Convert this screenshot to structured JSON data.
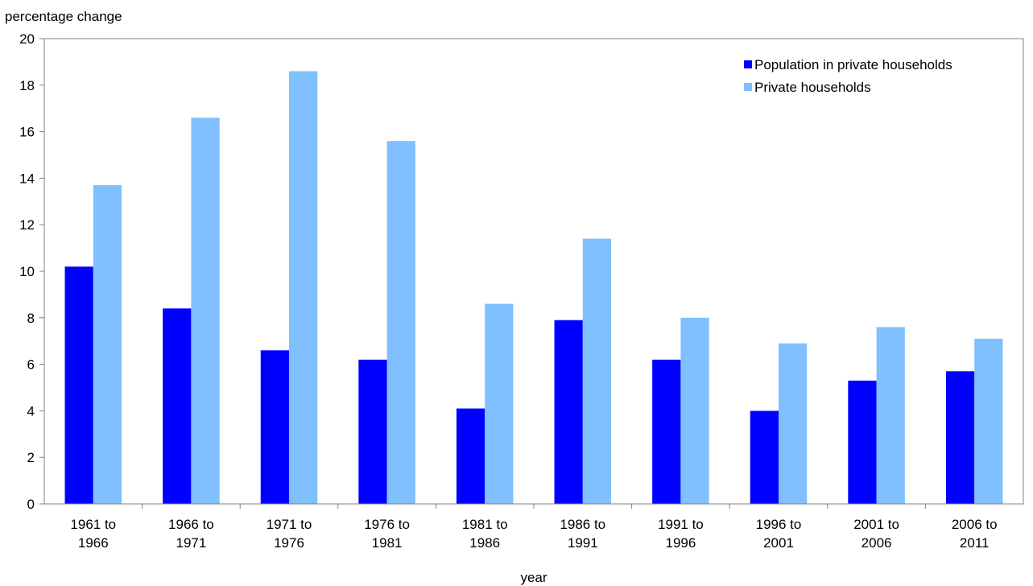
{
  "chart_data": {
    "type": "bar",
    "title": "",
    "ylabel": "percentage change",
    "xlabel": "year",
    "ylim": [
      0,
      20
    ],
    "yticks": [
      0,
      2,
      4,
      6,
      8,
      10,
      12,
      14,
      16,
      18,
      20
    ],
    "grid": false,
    "legend_position": "top-right",
    "categories": [
      [
        "1961 to",
        "1966"
      ],
      [
        "1966 to",
        "1971"
      ],
      [
        "1971 to",
        "1976"
      ],
      [
        "1976 to",
        "1981"
      ],
      [
        "1981 to",
        "1986"
      ],
      [
        "1986 to",
        "1991"
      ],
      [
        "1991 to",
        "1996"
      ],
      [
        "1996 to",
        "2001"
      ],
      [
        "2001 to",
        "2006"
      ],
      [
        "2006 to",
        "2011"
      ]
    ],
    "series": [
      {
        "name": "Population in private households",
        "color": "#0000FF",
        "values": [
          10.2,
          8.4,
          6.6,
          6.2,
          4.1,
          7.9,
          6.2,
          4.0,
          5.3,
          5.7
        ]
      },
      {
        "name": "Private households",
        "color": "#80C0FF",
        "values": [
          13.7,
          16.6,
          18.6,
          15.6,
          8.6,
          11.4,
          8.0,
          6.9,
          7.6,
          7.1
        ]
      }
    ]
  }
}
